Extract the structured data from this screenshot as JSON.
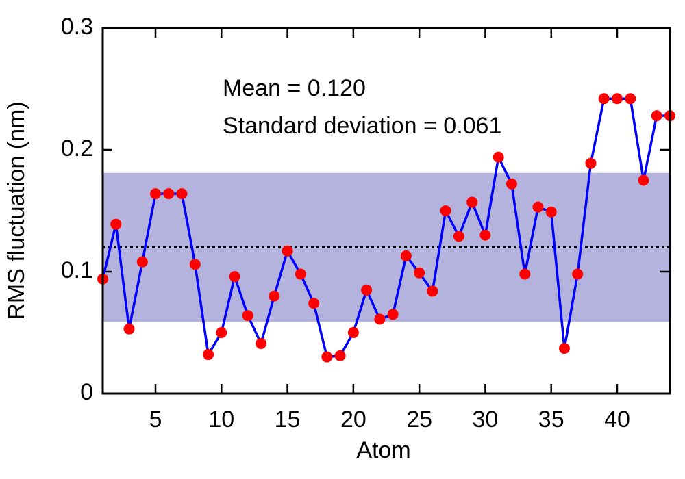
{
  "chart_data": {
    "type": "line",
    "xlabel": "Atom",
    "ylabel": "RMS fluctuation (nm)",
    "annotations": [
      "Mean = 0.120",
      "Standard deviation = 0.061"
    ],
    "x": [
      1,
      2,
      3,
      4,
      5,
      6,
      7,
      8,
      9,
      10,
      11,
      12,
      13,
      14,
      15,
      16,
      17,
      18,
      19,
      20,
      21,
      22,
      23,
      24,
      25,
      26,
      27,
      28,
      29,
      30,
      31,
      32,
      33,
      34,
      35,
      36,
      37,
      38,
      39,
      40,
      41,
      42,
      43,
      44
    ],
    "series": [
      {
        "color": "#0000ff",
        "marker_color": "#ff0000",
        "values": [
          0.094,
          0.139,
          0.053,
          0.108,
          0.164,
          0.164,
          0.164,
          0.106,
          0.032,
          0.05,
          0.096,
          0.064,
          0.041,
          0.08,
          0.117,
          0.098,
          0.074,
          0.03,
          0.031,
          0.05,
          0.085,
          0.061,
          0.065,
          0.113,
          0.099,
          0.084,
          0.15,
          0.129,
          0.157,
          0.13,
          0.194,
          0.172,
          0.098,
          0.153,
          0.149,
          0.037,
          0.098,
          0.189,
          0.242,
          0.242,
          0.242,
          0.175,
          0.228,
          0.228
        ]
      }
    ],
    "mean_line": 0.12,
    "band": [
      0.059,
      0.181
    ],
    "band_color": "#b3b3dd",
    "xlim": [
      1,
      44
    ],
    "xticks": [
      5,
      10,
      15,
      20,
      25,
      30,
      35,
      40
    ],
    "ylim": [
      0,
      0.3
    ],
    "yticks": [
      0,
      0.1,
      0.2,
      0.3
    ]
  }
}
